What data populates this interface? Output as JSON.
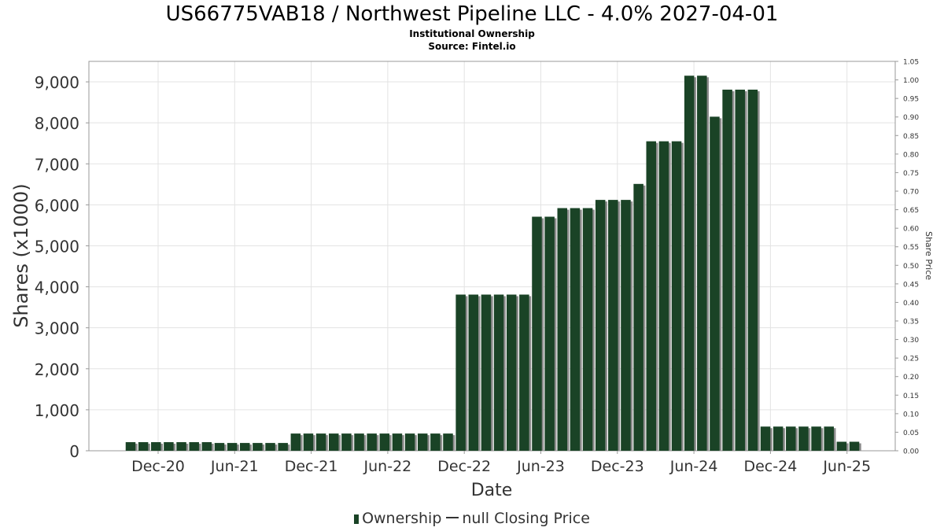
{
  "title": "US66775VAB18 / Northwest Pipeline LLC - 4.0% 2027-04-01",
  "subtitle": "Institutional Ownership",
  "source": "Source: Fintel.io",
  "legend": {
    "ownership": "Ownership",
    "closing_price": "null Closing Price"
  },
  "colors": {
    "bar": "#1a4326",
    "bar_shadow": "#8c8c8c",
    "grid": "#e3e3e3",
    "axis_text": "#333333"
  },
  "chart_data": {
    "type": "bar",
    "xlabel": "Date",
    "ylabel": "Shares (x1000)",
    "y2label": "Share Price",
    "ylim": [
      0,
      9500
    ],
    "y2lim": [
      0,
      1.05
    ],
    "yticks": [
      "0",
      "1,000",
      "2,000",
      "3,000",
      "4,000",
      "5,000",
      "6,000",
      "7,000",
      "8,000",
      "9,000"
    ],
    "y2ticks": [
      "0.00",
      "0.05",
      "0.10",
      "0.15",
      "0.20",
      "0.25",
      "0.30",
      "0.35",
      "0.40",
      "0.45",
      "0.50",
      "0.55",
      "0.60",
      "0.65",
      "0.70",
      "0.75",
      "0.80",
      "0.85",
      "0.90",
      "0.95",
      "1.00",
      "1.05"
    ],
    "xticks": [
      "Dec-20",
      "Jun-21",
      "Dec-21",
      "Jun-22",
      "Dec-22",
      "Jun-23",
      "Dec-23",
      "Jun-24",
      "Dec-24",
      "Jun-25"
    ],
    "grid": true,
    "legend_position": "bottom",
    "series": [
      {
        "name": "Ownership",
        "values": [
          210,
          210,
          210,
          210,
          210,
          210,
          210,
          190,
          190,
          190,
          190,
          190,
          190,
          420,
          420,
          420,
          420,
          420,
          420,
          420,
          420,
          420,
          420,
          420,
          420,
          420,
          3810,
          3810,
          3810,
          3810,
          3810,
          3810,
          5710,
          5710,
          5920,
          5920,
          5920,
          6120,
          6120,
          6120,
          6510,
          7550,
          7550,
          7550,
          9150,
          9150,
          8150,
          8810,
          8810,
          8810,
          590,
          590,
          590,
          590,
          590,
          590,
          220,
          220
        ]
      }
    ]
  }
}
